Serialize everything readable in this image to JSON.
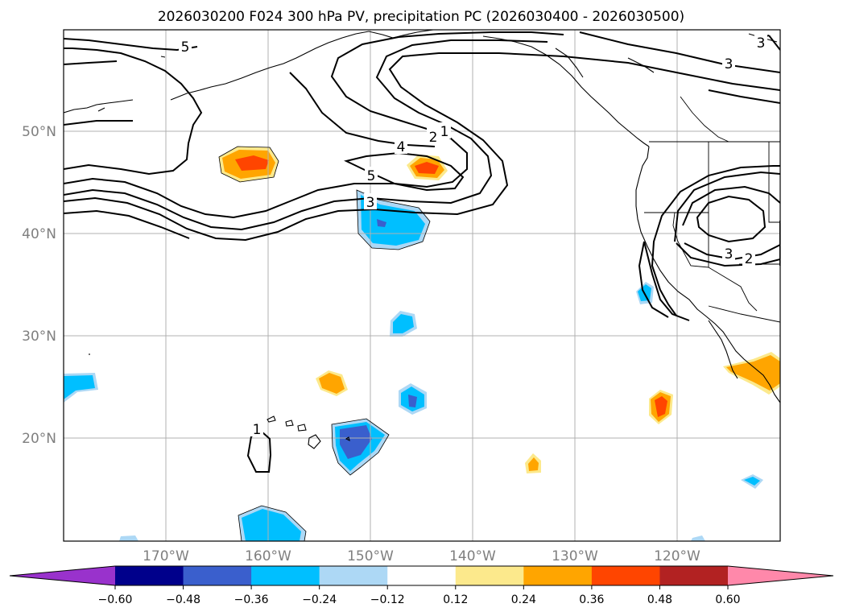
{
  "title": "2026030200 F024 300 hPa PV, precipitation PC (2026030400 - 2026030500)",
  "map": {
    "lon_range": [
      -180,
      -110
    ],
    "lat_range": [
      10,
      60
    ],
    "lat_labels": [
      {
        "lat": 50,
        "label": "50°N"
      },
      {
        "lat": 40,
        "label": "40°N"
      },
      {
        "lat": 30,
        "label": "30°N"
      },
      {
        "lat": 20,
        "label": "20°N"
      }
    ],
    "lon_labels": [
      {
        "lon": -170,
        "label": "170°W"
      },
      {
        "lon": -160,
        "label": "160°W"
      },
      {
        "lon": -150,
        "label": "150°W"
      },
      {
        "lon": -140,
        "label": "140°W"
      },
      {
        "lon": -130,
        "label": "130°W"
      },
      {
        "lon": -120,
        "label": "120°W"
      }
    ]
  },
  "pv_contour_labels": [
    "5",
    "1",
    "2",
    "4",
    "5",
    "3",
    "3",
    "1",
    "3",
    "2",
    "3"
  ],
  "colorbar": {
    "ticks": [
      "−0.60",
      "−0.48",
      "−0.36",
      "−0.24",
      "−0.12",
      "0.12",
      "0.24",
      "0.36",
      "0.48",
      "0.60"
    ],
    "colors": [
      "#9932cc",
      "#00008b",
      "#3a5fcd",
      "#00bfff",
      "#add8f5",
      "#ffffff",
      "#fce98c",
      "#ffa500",
      "#ff4500",
      "#b22222",
      "#ff88aa"
    ]
  }
}
